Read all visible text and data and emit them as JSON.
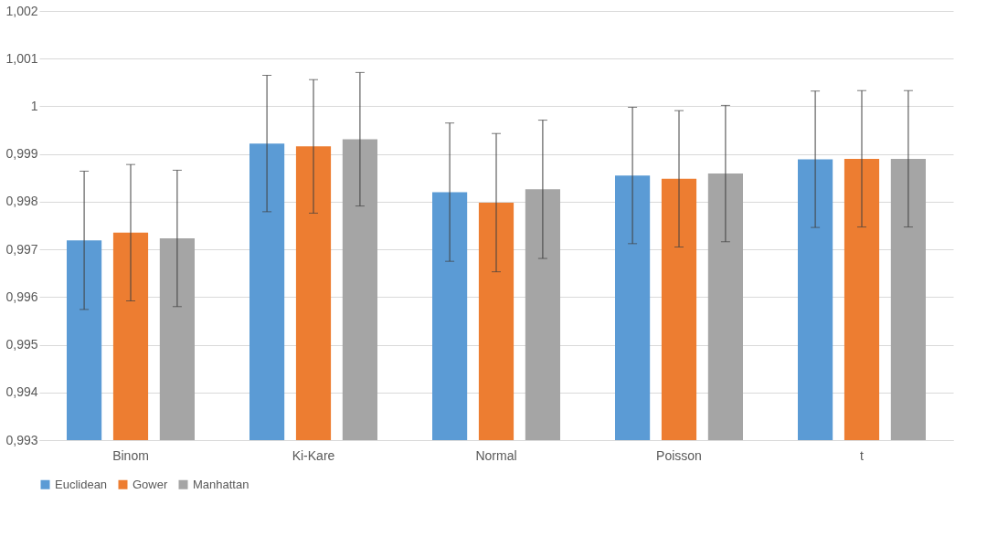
{
  "chart_data": {
    "type": "bar",
    "categories": [
      "Binom",
      "Ki-Kare",
      "Normal",
      "Poisson",
      "t"
    ],
    "series": [
      {
        "name": "Euclidean",
        "color": "#5b9bd5",
        "values": [
          0.99719,
          0.99922,
          0.9982,
          0.99855,
          0.99889
        ],
        "errors": [
          0.00145,
          0.00143,
          0.00145,
          0.00143,
          0.00143
        ]
      },
      {
        "name": "Gower",
        "color": "#ed7d31",
        "values": [
          0.99735,
          0.99916,
          0.99798,
          0.99848,
          0.9989
        ],
        "errors": [
          0.00143,
          0.0014,
          0.00145,
          0.00143,
          0.00143
        ]
      },
      {
        "name": "Manhattan",
        "color": "#a5a5a5",
        "values": [
          0.99723,
          0.99931,
          0.99826,
          0.99859,
          0.9989
        ],
        "errors": [
          0.00143,
          0.0014,
          0.00145,
          0.00143,
          0.00143
        ]
      }
    ],
    "ylim": [
      0.993,
      1.002
    ],
    "yticks": [
      {
        "value": 0.993,
        "label": "0,993"
      },
      {
        "value": 0.994,
        "label": "0,994"
      },
      {
        "value": 0.995,
        "label": "0,995"
      },
      {
        "value": 0.996,
        "label": "0,996"
      },
      {
        "value": 0.997,
        "label": "0,997"
      },
      {
        "value": 0.998,
        "label": "0,998"
      },
      {
        "value": 0.999,
        "label": "0,999"
      },
      {
        "value": 1,
        "label": "1"
      },
      {
        "value": 1.001,
        "label": "1,001"
      },
      {
        "value": 1.002,
        "label": "1,002"
      }
    ],
    "grid": "y",
    "legend": "bottom"
  }
}
